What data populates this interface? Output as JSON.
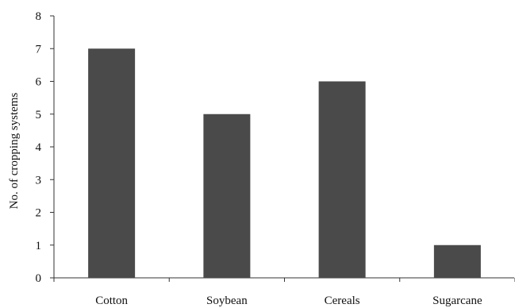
{
  "chart_data": {
    "type": "bar",
    "title": "",
    "xlabel": "",
    "ylabel": "No. of cropping systems",
    "categories": [
      "Cotton",
      "Soybean",
      "Cereals",
      "Sugarcane"
    ],
    "values": [
      7,
      5,
      6,
      1
    ],
    "ylim": [
      0,
      8
    ],
    "yticks": [
      "0",
      "1",
      "2",
      "3",
      "4",
      "5",
      "6",
      "7",
      "8"
    ],
    "bar_color": "#4a4a4a",
    "grid": false,
    "legend": "none"
  }
}
